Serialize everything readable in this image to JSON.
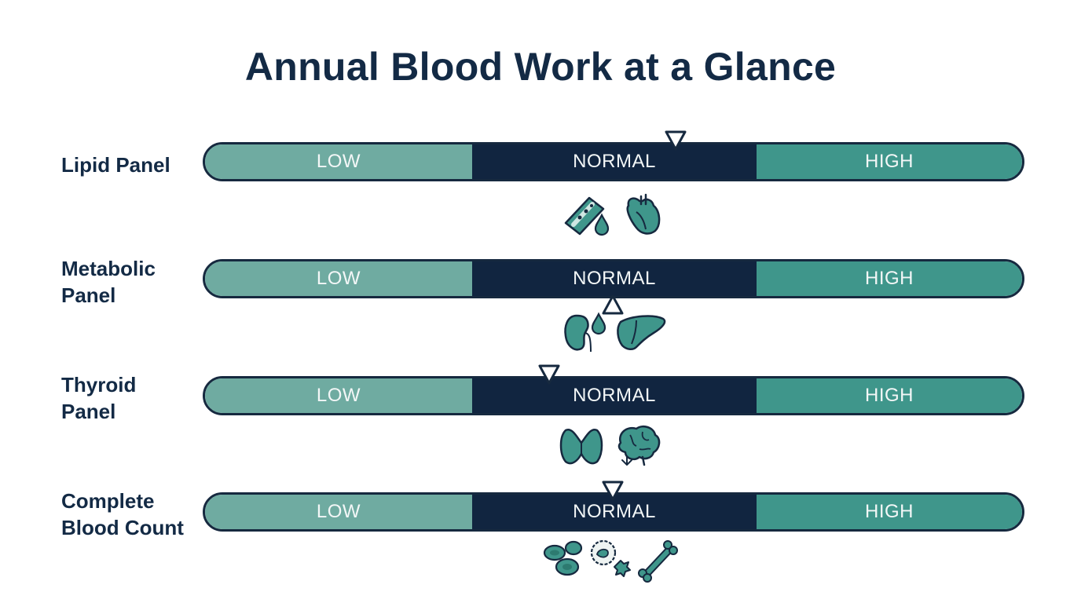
{
  "title": "Annual Blood Work at a Glance",
  "colors": {
    "low": "#6faba1",
    "normal": "#112540",
    "high": "#3f968b",
    "text_dark": "#132a45",
    "icon_teal": "#3f968b"
  },
  "zones": {
    "low": "LOW",
    "normal": "NORMAL",
    "high": "HIGH"
  },
  "panels": [
    {
      "label_line1": "Lipid Panel",
      "label_line2": "",
      "marker_direction": "down",
      "marker_position_pct": 57.2,
      "icons": [
        "artery-icon",
        "blood-drop-icon",
        "heart-icon"
      ]
    },
    {
      "label_line1": "Metabolic",
      "label_line2": "Panel",
      "marker_direction": "up",
      "marker_position_pct": 50.0,
      "icons": [
        "kidney-icon",
        "blood-drop-icon",
        "liver-icon"
      ]
    },
    {
      "label_line1": "Thyroid",
      "label_line2": "Panel",
      "marker_direction": "down",
      "marker_position_pct": 42.2,
      "icons": [
        "thyroid-icon",
        "down-arrow-icon",
        "brain-icon"
      ]
    },
    {
      "label_line1": "Complete",
      "label_line2": "Blood Count",
      "marker_direction": "down",
      "marker_position_pct": 50.0,
      "icons": [
        "red-blood-cells-icon",
        "white-blood-cell-icon",
        "platelet-icon",
        "bone-icon"
      ]
    }
  ]
}
